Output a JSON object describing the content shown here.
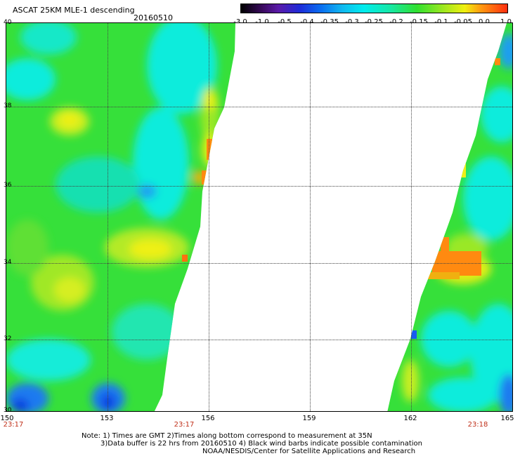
{
  "title": "ASCAT 25KM MLE-1 descending",
  "date": "20160510",
  "colorbar": {
    "ticks": [
      "-3.0",
      "-1.0",
      "-0.5",
      "-0.4",
      "-0.35",
      "-0.3",
      "-0.25",
      "-0.2",
      "-0.15",
      "-0.1",
      "-0.05",
      "0.0",
      "1.0"
    ]
  },
  "map": {
    "lat_labels": [
      "40",
      "38",
      "36",
      "34",
      "32",
      "30"
    ],
    "lon_labels": [
      "150",
      "153",
      "156",
      "159",
      "162",
      "165"
    ],
    "time_labels": [
      "23:17",
      "23:17",
      "23:18"
    ]
  },
  "notes": [
    "Note: 1) Times are GMT 2)Times along bottom correspond to measurement at 35N",
    "3)Data buffer is 22 hrs from 20160510 4) Black wind barbs indicate possible contamination",
    "NOAA/NESDIS/Center for Satellite Applications and Research"
  ],
  "colors": {
    "swath_green": "#3ee03a",
    "swath_cyan": "#10ecdc",
    "swath_yellow": "#e8f018",
    "swath_orange": "#ff8a10",
    "swath_blue": "#1050f0"
  }
}
